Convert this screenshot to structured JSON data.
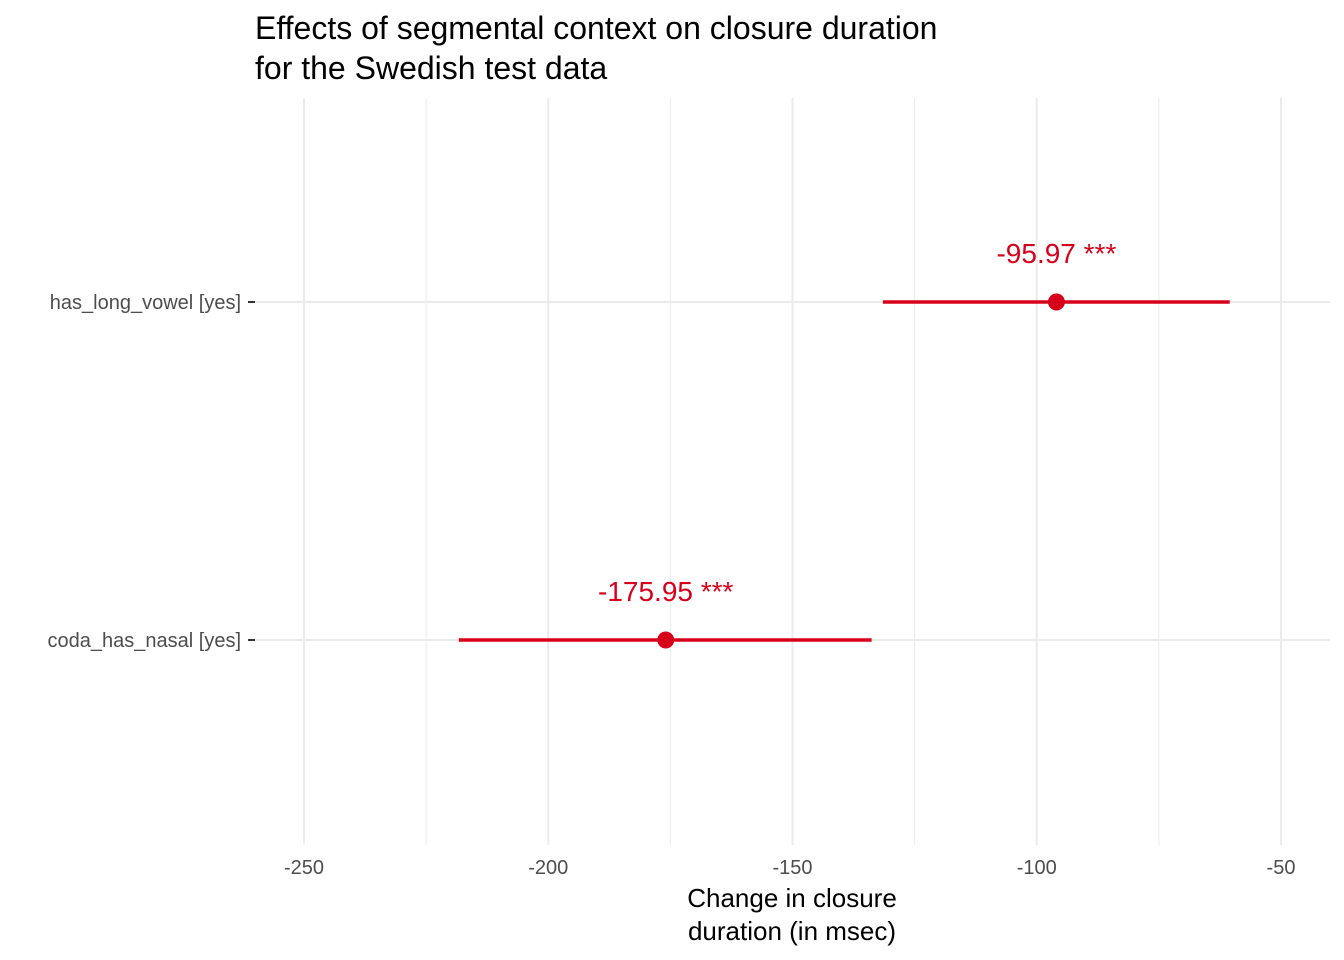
{
  "chart_data": {
    "type": "forest",
    "title": "Effects of segmental context on closure duration",
    "subtitle": "for the Swedish test data",
    "xlabel_line1": "Change in closure",
    "xlabel_line2": "duration (in msec)",
    "ylabel": "",
    "xlim": [
      -250,
      -50
    ],
    "x_ticks": [
      {
        "value": -250,
        "label": "-250"
      },
      {
        "value": -200,
        "label": "-200"
      },
      {
        "value": -150,
        "label": "-150"
      },
      {
        "value": -100,
        "label": "-100"
      },
      {
        "value": -50,
        "label": "-50"
      }
    ],
    "minor_grid": [
      -225,
      -175,
      -125,
      -75
    ],
    "grid": true,
    "legend": "none",
    "color": "#d7001a",
    "terms": [
      {
        "label": "has_long_vowel [yes]",
        "estimate": -95.97,
        "ci_low": -131.5,
        "ci_high": -60.5,
        "text": "-95.97 ***"
      },
      {
        "label": "coda_has_nasal [yes]",
        "estimate": -175.95,
        "ci_low": -218.3,
        "ci_high": -133.8,
        "text": "-175.95 ***"
      }
    ]
  }
}
